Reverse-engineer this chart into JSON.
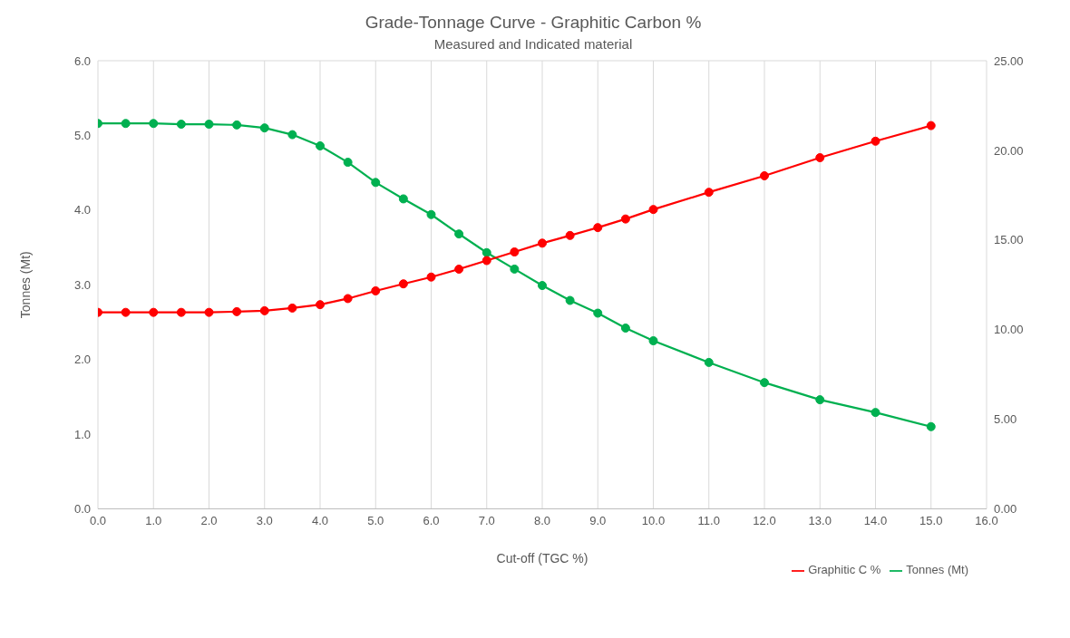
{
  "chart_data": {
    "type": "line",
    "title": "Grade-Tonnage Curve - Graphitic Carbon %",
    "subtitle": "Measured and Indicated material",
    "xlabel": "Cut-off (TGC %)",
    "ylabel": "Tonnes (Mt)",
    "x": [
      0,
      0.5,
      1,
      1.5,
      2,
      2.5,
      3,
      3.5,
      4,
      4.5,
      5,
      5.5,
      6,
      6.5,
      7,
      7.5,
      8,
      8.5,
      9,
      9.5,
      10,
      11,
      12,
      13,
      14,
      15
    ],
    "series": [
      {
        "name": "Tonnes (Mt)",
        "color": "#00b050",
        "values": [
          5.16,
          5.16,
          5.16,
          5.15,
          5.15,
          5.14,
          5.1,
          5.01,
          4.86,
          4.64,
          4.37,
          4.15,
          3.94,
          3.68,
          3.43,
          3.21,
          2.99,
          2.79,
          2.62,
          2.42,
          2.25,
          1.96,
          1.69,
          1.46,
          1.29,
          1.1
        ]
      },
      {
        "name": "Graphitic C %",
        "color": "#ff0000",
        "axis": "y2",
        "values": [
          10.96,
          10.96,
          10.96,
          10.96,
          10.96,
          11.0,
          11.05,
          11.2,
          11.39,
          11.73,
          12.16,
          12.55,
          12.93,
          13.37,
          13.85,
          14.33,
          14.82,
          15.25,
          15.69,
          16.17,
          16.7,
          17.66,
          18.58,
          19.59,
          20.51,
          21.38
        ]
      }
    ],
    "xlim": [
      0,
      16
    ],
    "xticks": [
      {
        "value": 0,
        "label": "0.0"
      },
      {
        "value": 1,
        "label": "1.0"
      },
      {
        "value": 2,
        "label": "2.0"
      },
      {
        "value": 3,
        "label": "3.0"
      },
      {
        "value": 4,
        "label": "4.0"
      },
      {
        "value": 5,
        "label": "5.0"
      },
      {
        "value": 6,
        "label": "6.0"
      },
      {
        "value": 7,
        "label": "7.0"
      },
      {
        "value": 8,
        "label": "8.0"
      },
      {
        "value": 9,
        "label": "9.0"
      },
      {
        "value": 10,
        "label": "10.0"
      },
      {
        "value": 11,
        "label": "11.0"
      },
      {
        "value": 12,
        "label": "12.0"
      },
      {
        "value": 13,
        "label": "13.0"
      },
      {
        "value": 14,
        "label": "14.0"
      },
      {
        "value": 15,
        "label": "15.0"
      },
      {
        "value": 16,
        "label": "16.0"
      }
    ],
    "ylim": [
      0,
      6
    ],
    "yticks": [
      {
        "value": 0,
        "label": "0.0"
      },
      {
        "value": 1,
        "label": "1.0"
      },
      {
        "value": 2,
        "label": "2.0"
      },
      {
        "value": 3,
        "label": "3.0"
      },
      {
        "value": 4,
        "label": "4.0"
      },
      {
        "value": 5,
        "label": "5.0"
      },
      {
        "value": 6,
        "label": "6.0"
      }
    ],
    "y2lim": [
      0,
      25
    ],
    "y2ticks": [
      {
        "value": 0,
        "label": "0.00"
      },
      {
        "value": 5,
        "label": "5.00"
      },
      {
        "value": 10,
        "label": "10.00"
      },
      {
        "value": 15,
        "label": "15.00"
      },
      {
        "value": 20,
        "label": "20.00"
      },
      {
        "value": 25,
        "label": "25.00"
      }
    ],
    "grid": true,
    "legend": "bottom right",
    "marker": "circle",
    "line_style": "solid"
  }
}
